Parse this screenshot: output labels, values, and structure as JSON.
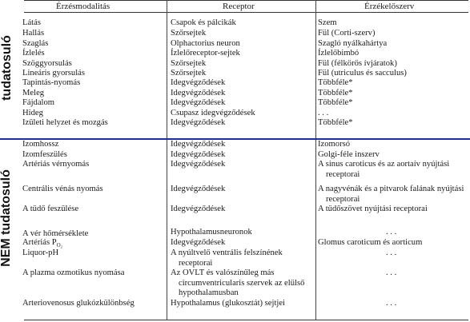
{
  "side_labels": {
    "conscious": "tudatosuló",
    "not_conscious": "NEM tudatosuló"
  },
  "headers": {
    "modality": "Érzésmodalitás",
    "receptor": "Receptor",
    "organ": "Érzékelőszerv"
  },
  "conscious_rows": [
    {
      "modality": "Látás",
      "receptor": "Csapok és pálcikák",
      "organ": "Szem"
    },
    {
      "modality": "Hallás",
      "receptor": "Szőrsejtek",
      "organ": "Fül (Corti-szerv)"
    },
    {
      "modality": "Szaglás",
      "receptor": "Olphactorius neuron",
      "organ": "Szagló nyálkahártya"
    },
    {
      "modality": "Ízlelés",
      "receptor": "Ízlelőreceptor-sejtek",
      "organ": "Ízlelőbimbó"
    },
    {
      "modality": "Szöggyorsulás",
      "receptor": "Szőrsejtek",
      "organ": "Fül (félkörös ívjáratok)"
    },
    {
      "modality": "Lineáris gyorsulás",
      "receptor": "Szőrsejtek",
      "organ": "Fül (utriculus és sacculus)"
    },
    {
      "modality": "Tapintás-nyomás",
      "receptor": "Idegvégződések",
      "organ": "Többféle*"
    },
    {
      "modality": "Meleg",
      "receptor": "Idegvégződések",
      "organ": "Többféle*"
    },
    {
      "modality": "Fájdalom",
      "receptor": "Idegvégződések",
      "organ": "Többféle*"
    },
    {
      "modality": "Hideg",
      "receptor": "Csupasz idegvégződések",
      "organ": ". . ."
    },
    {
      "modality": "Izületi helyzet és mozgás",
      "receptor": "Idegvégződések",
      "organ": "Többféle*"
    }
  ],
  "unconscious_rows": [
    {
      "modality": "Izomhossz",
      "receptor": "Idegvégződések",
      "organ": "Izomorsó"
    },
    {
      "modality": "Izomfeszülés",
      "receptor": "Idegvégződések",
      "organ": "Golgi-féle inszerv"
    },
    {
      "modality": "Artériás vérnyomás",
      "receptor": "Idegvégződések",
      "organ": "A sinus caroticus és az aortaív nyújtási receptorai"
    },
    {
      "modality": "Centrális vénás nyomás",
      "receptor": "Idegvégződések",
      "organ": "A nagyvénák és a pitvarok falának nyújtási receptorai"
    },
    {
      "modality": "A tüdő feszülése",
      "receptor": "Idegvégződések",
      "organ": "A tüdőszövet nyújtási receptorai"
    },
    {
      "modality": "A vér hőmérséklete",
      "receptor": "Hypothalamusneuronok",
      "organ": ". . ."
    },
    {
      "modality_main": "Artériás P",
      "modality_sub": "O₂",
      "receptor": "Idegvégződések",
      "organ": "Glomus caroticum és aorticum"
    },
    {
      "modality": "Liquor-pH",
      "receptor": "A nyúltvelő ventrális felszínének receptorai",
      "organ": ". . ."
    },
    {
      "modality": "A plazma ozmotikus nyomása",
      "receptor": "Az OVLT és valószínűleg más circumventricularis szervek az elülső hypothalamusban",
      "organ": ". . ."
    },
    {
      "modality": "Arteriovenosus glukózkülönbség",
      "receptor": "Hypothalamus (glukosztát) sejtjei",
      "organ": ". . ."
    }
  ]
}
